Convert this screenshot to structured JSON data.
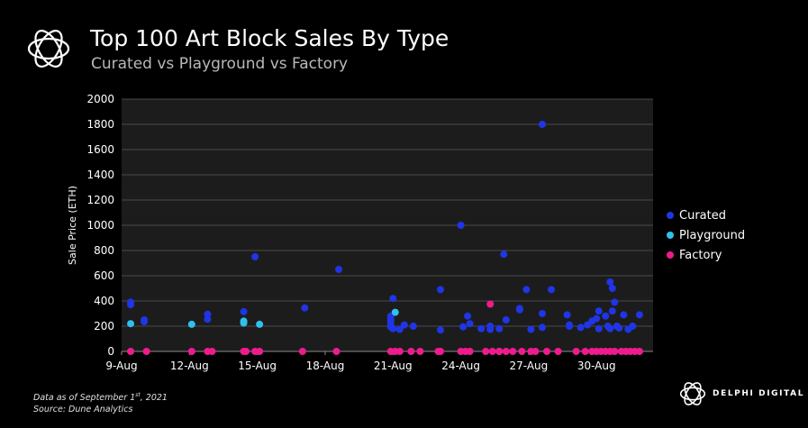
{
  "header": {
    "title": "Top 100 Art Block Sales By Type",
    "subtitle": "Curated vs Playground vs Factory"
  },
  "footer": {
    "data_as_of_prefix": "Data as of September 1",
    "data_as_of_sup": "st",
    "data_as_of_suffix": ", 2021",
    "source": "Source:  Dune Analytics"
  },
  "brand": {
    "name": "DELPHI DIGITAL"
  },
  "colors": {
    "curated": "#1f35e6",
    "playground": "#2fc0ee",
    "factory": "#f01a8f",
    "background": "#000000",
    "plot_bg": "#1c1c1c"
  },
  "chart_data": {
    "type": "scatter",
    "title": "Top 100 Art Block Sales By Type",
    "subtitle": "Curated vs Playground vs Factory",
    "xlabel": "",
    "ylabel": "Sale Price (ETH)",
    "ylim": [
      0,
      2000
    ],
    "yticks": [
      0,
      200,
      400,
      600,
      800,
      1000,
      1200,
      1400,
      1600,
      1800,
      2000
    ],
    "xlim": [
      0,
      23.5
    ],
    "xticks": [
      {
        "x": 0,
        "label": "9-Aug"
      },
      {
        "x": 3,
        "label": "12-Aug"
      },
      {
        "x": 6,
        "label": "15-Aug"
      },
      {
        "x": 9,
        "label": "18-Aug"
      },
      {
        "x": 12,
        "label": "21-Aug"
      },
      {
        "x": 15,
        "label": "24-Aug"
      },
      {
        "x": 18,
        "label": "27-Aug"
      },
      {
        "x": 21,
        "label": "30-Aug"
      }
    ],
    "legend_position": "right",
    "grid": true,
    "series": [
      {
        "name": "Curated",
        "points": [
          [
            0.4,
            390
          ],
          [
            0.4,
            370
          ],
          [
            1.0,
            250
          ],
          [
            1.0,
            235
          ],
          [
            3.8,
            295
          ],
          [
            3.8,
            255
          ],
          [
            5.4,
            315
          ],
          [
            5.9,
            750
          ],
          [
            8.1,
            345
          ],
          [
            9.6,
            650
          ],
          [
            12.0,
            420
          ],
          [
            11.9,
            280
          ],
          [
            11.9,
            260
          ],
          [
            11.9,
            240
          ],
          [
            11.9,
            215
          ],
          [
            11.9,
            195
          ],
          [
            12.0,
            180
          ],
          [
            12.3,
            175
          ],
          [
            12.5,
            210
          ],
          [
            12.9,
            200
          ],
          [
            14.1,
            490
          ],
          [
            14.1,
            170
          ],
          [
            15.0,
            1000
          ],
          [
            15.1,
            195
          ],
          [
            15.3,
            280
          ],
          [
            15.4,
            220
          ],
          [
            15.9,
            180
          ],
          [
            16.3,
            200
          ],
          [
            16.3,
            175
          ],
          [
            16.7,
            180
          ],
          [
            16.9,
            770
          ],
          [
            17.0,
            250
          ],
          [
            17.6,
            340
          ],
          [
            17.6,
            330
          ],
          [
            17.9,
            490
          ],
          [
            18.1,
            175
          ],
          [
            18.6,
            1800
          ],
          [
            18.6,
            300
          ],
          [
            18.6,
            190
          ],
          [
            19.0,
            490
          ],
          [
            19.7,
            290
          ],
          [
            19.8,
            210
          ],
          [
            19.8,
            200
          ],
          [
            20.3,
            190
          ],
          [
            20.6,
            210
          ],
          [
            20.8,
            240
          ],
          [
            21.0,
            260
          ],
          [
            21.1,
            320
          ],
          [
            21.1,
            180
          ],
          [
            21.4,
            280
          ],
          [
            21.6,
            550
          ],
          [
            21.7,
            500
          ],
          [
            21.7,
            320
          ],
          [
            21.5,
            200
          ],
          [
            21.6,
            180
          ],
          [
            21.8,
            390
          ],
          [
            21.9,
            200
          ],
          [
            22.0,
            185
          ],
          [
            22.2,
            290
          ],
          [
            22.4,
            175
          ],
          [
            22.6,
            200
          ],
          [
            22.9,
            290
          ]
        ]
      },
      {
        "name": "Playground",
        "points": [
          [
            0.4,
            220
          ],
          [
            3.1,
            215
          ],
          [
            5.4,
            240
          ],
          [
            5.4,
            225
          ],
          [
            6.1,
            215
          ],
          [
            12.1,
            310
          ],
          [
            16.7,
            0
          ]
        ]
      },
      {
        "name": "Factory",
        "points": [
          [
            0.4,
            0
          ],
          [
            1.1,
            0
          ],
          [
            3.1,
            0
          ],
          [
            3.8,
            0
          ],
          [
            4.0,
            0
          ],
          [
            5.4,
            0
          ],
          [
            5.5,
            0
          ],
          [
            5.9,
            0
          ],
          [
            6.1,
            0
          ],
          [
            8.0,
            0
          ],
          [
            9.5,
            0
          ],
          [
            11.9,
            0
          ],
          [
            12.1,
            0
          ],
          [
            12.3,
            0
          ],
          [
            12.8,
            0
          ],
          [
            13.2,
            0
          ],
          [
            14.0,
            0
          ],
          [
            14.1,
            0
          ],
          [
            15.0,
            0
          ],
          [
            15.2,
            0
          ],
          [
            15.4,
            0
          ],
          [
            16.1,
            0
          ],
          [
            16.4,
            0
          ],
          [
            16.7,
            0
          ],
          [
            17.0,
            0
          ],
          [
            17.3,
            0
          ],
          [
            16.3,
            375
          ],
          [
            17.7,
            0
          ],
          [
            18.1,
            0
          ],
          [
            18.3,
            0
          ],
          [
            18.8,
            0
          ],
          [
            19.3,
            0
          ],
          [
            20.1,
            0
          ],
          [
            20.5,
            0
          ],
          [
            20.8,
            0
          ],
          [
            21.0,
            0
          ],
          [
            21.2,
            0
          ],
          [
            21.4,
            0
          ],
          [
            21.6,
            0
          ],
          [
            21.8,
            0
          ],
          [
            22.1,
            0
          ],
          [
            22.3,
            0
          ],
          [
            22.5,
            0
          ],
          [
            22.7,
            0
          ],
          [
            22.9,
            0
          ]
        ]
      }
    ]
  }
}
